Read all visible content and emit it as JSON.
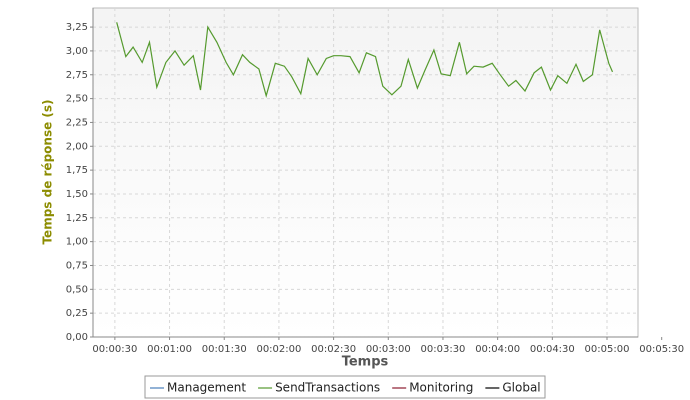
{
  "chart_data": {
    "type": "line",
    "ylabel": "Temps de réponse (s)",
    "xlabel": "Temps",
    "x": [
      31,
      36,
      40,
      45,
      49,
      53,
      58,
      63,
      68,
      73,
      77,
      81,
      86,
      91,
      95,
      100,
      104,
      109,
      113,
      118,
      123,
      127,
      132,
      136,
      141,
      146,
      150,
      154,
      159,
      164,
      168,
      173,
      177,
      182,
      187,
      191,
      196,
      200,
      205,
      209,
      214,
      219,
      223,
      227,
      232,
      237,
      241,
      246,
      250,
      255,
      260,
      264,
      269,
      273,
      278,
      283,
      287,
      292,
      296,
      301,
      303
    ],
    "series": [
      {
        "name": "Management",
        "color": "#4a7ebb",
        "values": [
          null,
          null,
          null,
          null,
          null,
          null,
          null,
          null,
          null,
          null,
          null,
          null,
          null,
          null,
          null,
          null,
          null,
          null,
          null,
          null,
          null,
          null,
          null,
          null,
          null,
          null,
          null,
          null,
          null,
          null,
          null,
          null,
          null,
          null,
          null,
          null,
          null,
          null,
          null,
          null,
          null,
          null,
          null,
          null,
          null,
          null,
          null,
          null,
          null,
          null,
          null,
          null,
          null,
          null,
          null,
          null,
          null,
          null,
          null,
          null,
          null
        ]
      },
      {
        "name": "SendTransactions",
        "color": "#559a2e",
        "values": [
          3.3,
          2.94,
          3.04,
          2.88,
          3.09,
          2.62,
          2.88,
          3.0,
          2.85,
          2.95,
          2.59,
          3.25,
          3.09,
          2.88,
          2.75,
          2.96,
          2.88,
          2.81,
          2.53,
          2.87,
          2.84,
          2.73,
          2.55,
          2.92,
          2.75,
          2.92,
          2.95,
          2.95,
          2.94,
          2.77,
          2.98,
          2.94,
          2.63,
          2.54,
          2.63,
          2.91,
          2.61,
          2.79,
          3.01,
          2.76,
          2.74,
          3.09,
          2.76,
          2.84,
          2.83,
          2.87,
          2.76,
          2.63,
          2.69,
          2.58,
          2.77,
          2.83,
          2.59,
          2.74,
          2.66,
          2.86,
          2.68,
          2.75,
          3.22,
          2.87,
          2.78
        ]
      },
      {
        "name": "Monitoring",
        "color": "#8b1a2e",
        "values": [
          null,
          null,
          null,
          null,
          null,
          null,
          null,
          null,
          null,
          null,
          null,
          null,
          null,
          null,
          null,
          null,
          null,
          null,
          null,
          null,
          null,
          null,
          null,
          null,
          null,
          null,
          null,
          null,
          null,
          null,
          null,
          null,
          null,
          null,
          null,
          null,
          null,
          null,
          null,
          null,
          null,
          null,
          null,
          null,
          null,
          null,
          null,
          null,
          null,
          null,
          null,
          null,
          null,
          null,
          null,
          null,
          null,
          null,
          null,
          null,
          null
        ]
      },
      {
        "name": "Global",
        "color": "#000000",
        "values": [
          null,
          null,
          null,
          null,
          null,
          null,
          null,
          null,
          null,
          null,
          null,
          null,
          null,
          null,
          null,
          null,
          null,
          null,
          null,
          null,
          null,
          null,
          null,
          null,
          null,
          null,
          null,
          null,
          null,
          null,
          null,
          null,
          null,
          null,
          null,
          null,
          null,
          null,
          null,
          null,
          null,
          null,
          null,
          null,
          null,
          null,
          null,
          null,
          null,
          null,
          null,
          null,
          null,
          null,
          null,
          null,
          null,
          null,
          null,
          null,
          null
        ]
      }
    ],
    "xlim": [
      18,
      317
    ],
    "xticks": [
      {
        "value": 30,
        "label": "00:00:30"
      },
      {
        "value": 60,
        "label": "00:01:00"
      },
      {
        "value": 90,
        "label": "00:01:30"
      },
      {
        "value": 120,
        "label": "00:02:00"
      },
      {
        "value": 150,
        "label": "00:02:30"
      },
      {
        "value": 180,
        "label": "00:03:00"
      },
      {
        "value": 210,
        "label": "00:03:30"
      },
      {
        "value": 240,
        "label": "00:04:00"
      },
      {
        "value": 270,
        "label": "00:04:30"
      },
      {
        "value": 300,
        "label": "00:05:00"
      },
      {
        "value": 330,
        "label": "00:05:30"
      }
    ],
    "ylim": [
      0,
      3.45
    ],
    "yticks": [
      {
        "value": 0,
        "label": "0,00"
      },
      {
        "value": 0.25,
        "label": "0,25"
      },
      {
        "value": 0.5,
        "label": "0,50"
      },
      {
        "value": 0.75,
        "label": "0,75"
      },
      {
        "value": 1,
        "label": "1,00"
      },
      {
        "value": 1.25,
        "label": "1,25"
      },
      {
        "value": 1.5,
        "label": "1,50"
      },
      {
        "value": 1.75,
        "label": "1,75"
      },
      {
        "value": 2,
        "label": "2,00"
      },
      {
        "value": 2.25,
        "label": "2,25"
      },
      {
        "value": 2.5,
        "label": "2,50"
      },
      {
        "value": 2.75,
        "label": "2,75"
      },
      {
        "value": 3,
        "label": "3,00"
      },
      {
        "value": 3.25,
        "label": "3,25"
      }
    ],
    "grid": true,
    "legend": "bottom"
  }
}
